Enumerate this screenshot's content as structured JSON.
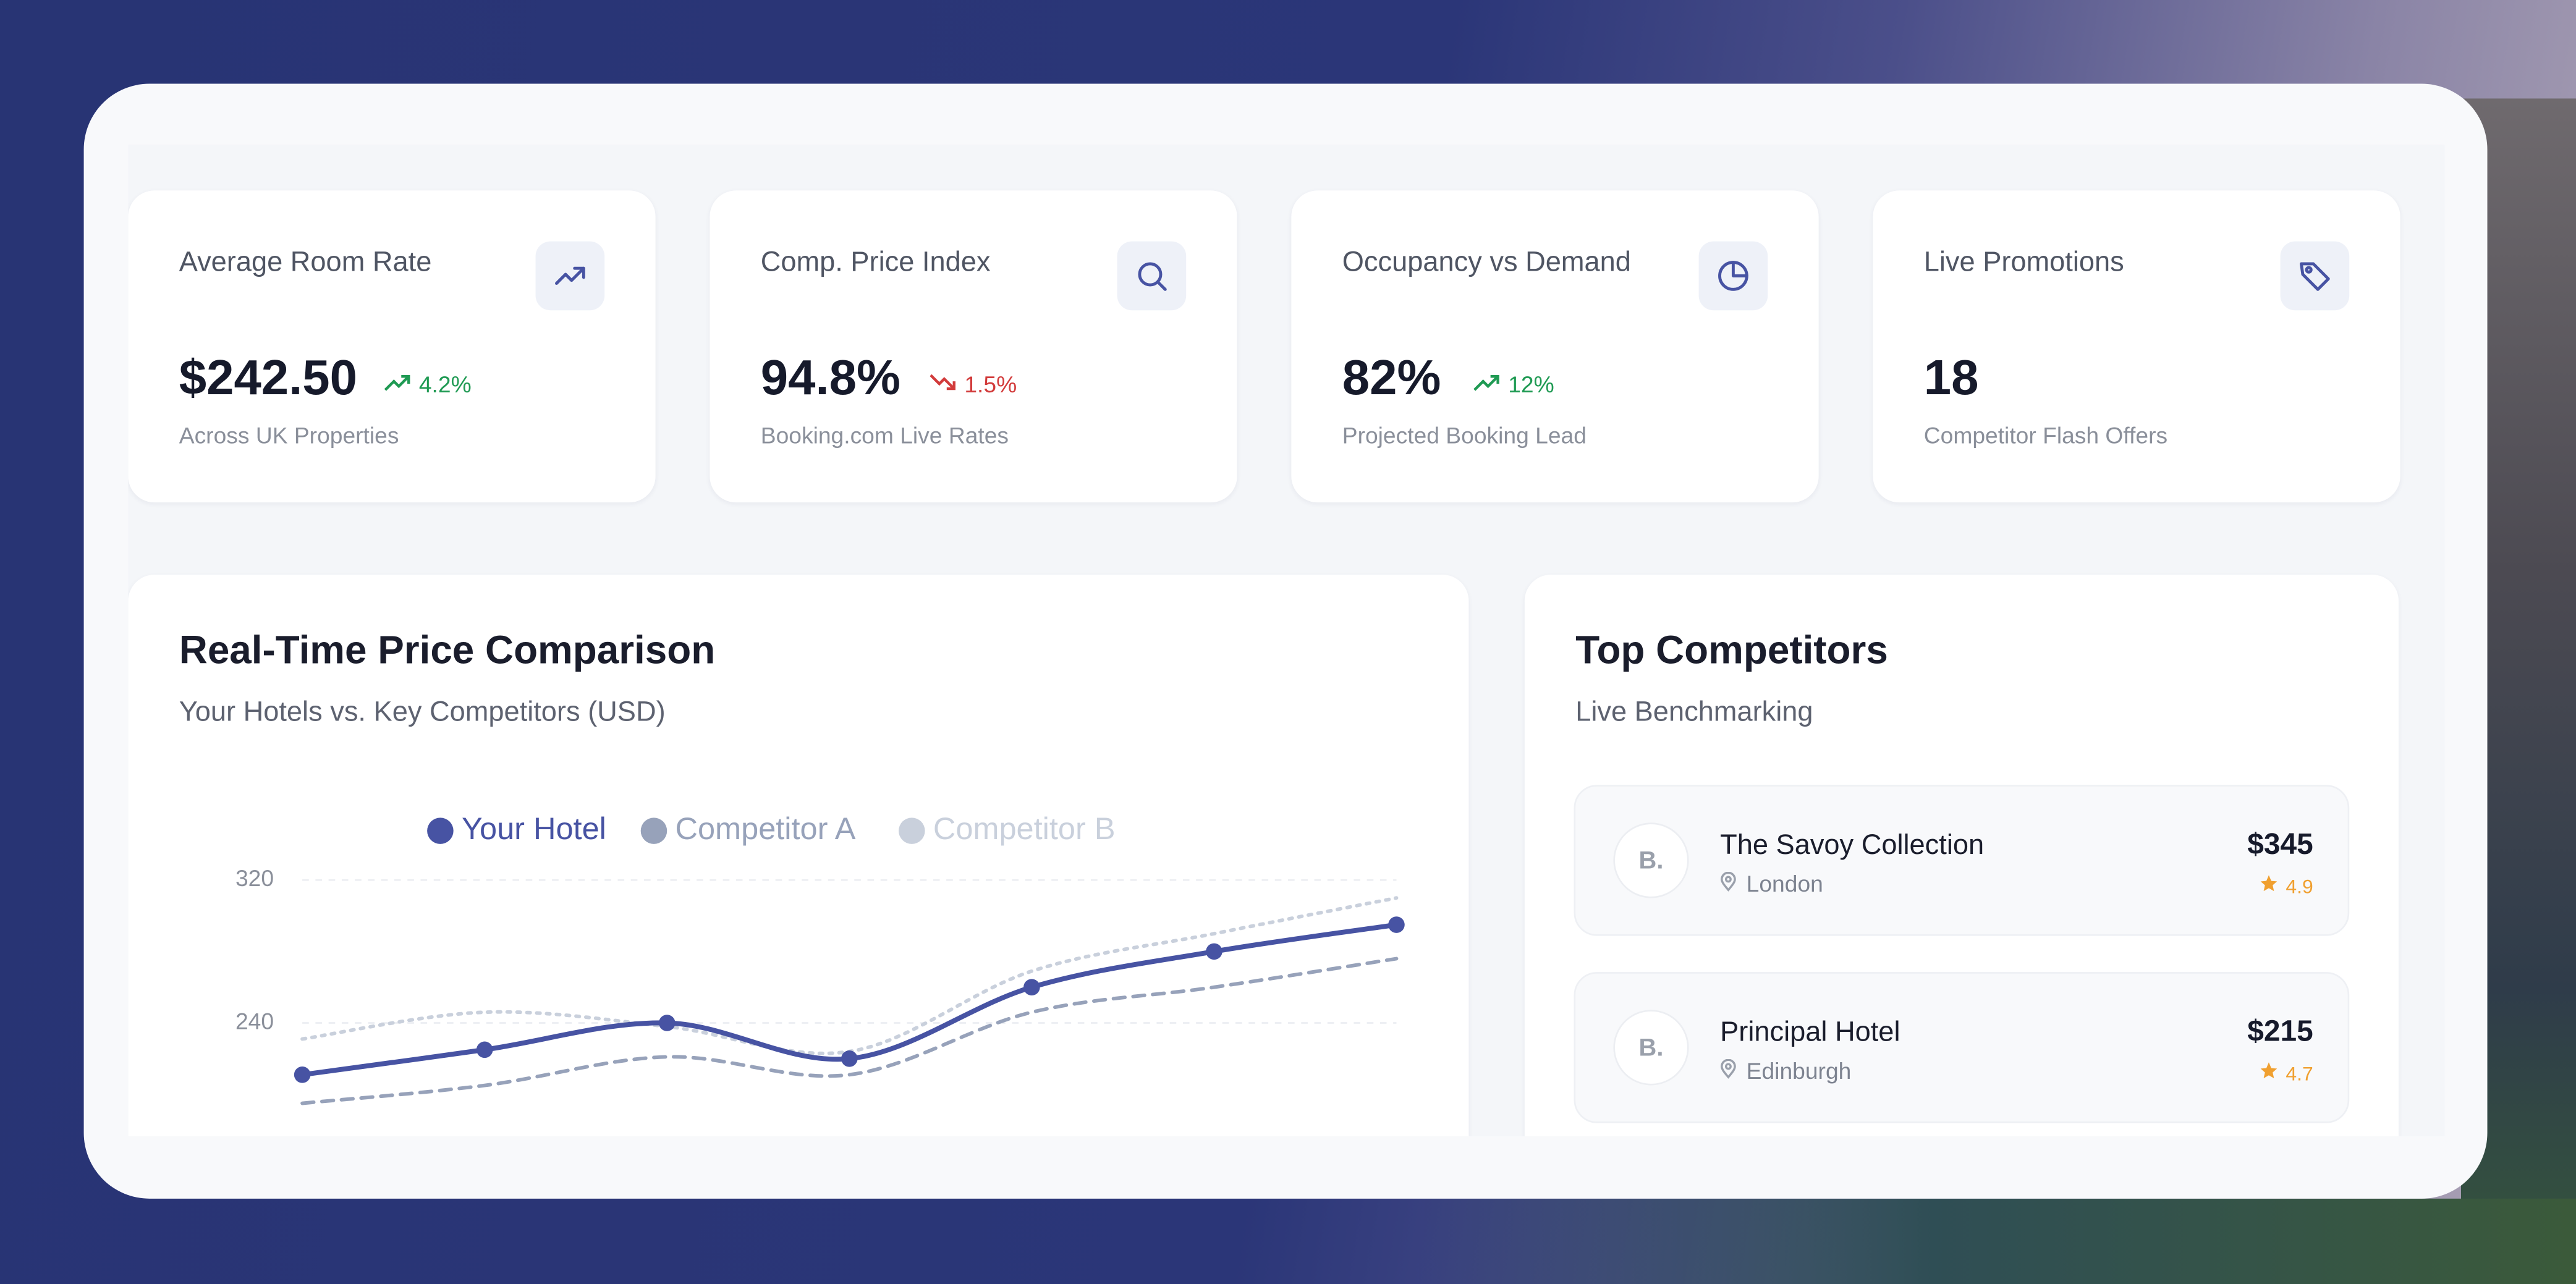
{
  "kpi_cards": [
    {
      "title": "Average Room Rate",
      "value": "$242.50",
      "change": "4.2%",
      "trend": "up",
      "subtitle": "Across UK Properties"
    },
    {
      "title": "Comp. Price Index",
      "value": "94.8%",
      "change": "1.5%",
      "trend": "down",
      "subtitle": "Booking.com Live Rates"
    },
    {
      "title": "Occupancy vs Demand",
      "value": "82%",
      "change": "12%",
      "trend": "up",
      "subtitle": "Projected Booking Lead"
    },
    {
      "title": "Live Promotions",
      "value": "18",
      "subtitle": "Competitor Flash Offers"
    }
  ],
  "price_chart": {
    "title": "Real-Time Price Comparison",
    "subtitle": "Your Hotels vs. Key Competitors (USD)",
    "chart_data": {
      "type": "line",
      "categories": [
        null,
        null,
        null,
        null,
        null,
        null,
        null
      ],
      "series": [
        {
          "name": "Your Hotel",
          "color": "#4753a3",
          "line_style": "solid",
          "markers": true,
          "values": [
            211,
            225,
            240,
            220,
            260,
            280,
            295
          ]
        },
        {
          "name": "Competitor A",
          "color": "#97a2ba",
          "line_style": "dashed",
          "markers": false,
          "values": [
            195,
            205,
            221,
            211,
            246,
            260,
            276
          ]
        },
        {
          "name": "Competitor B",
          "color": "#c9d0dc",
          "line_style": "dotted",
          "markers": false,
          "values": [
            231,
            246,
            238,
            224,
            269,
            290,
            310
          ]
        }
      ],
      "ylim": [
        160,
        320
      ],
      "yticks": [
        240,
        320
      ],
      "grid": true,
      "legend": "top"
    }
  },
  "competitors": {
    "title": "Top Competitors",
    "subtitle": "Live Benchmarking",
    "items": [
      {
        "initials": "B.",
        "name": "The Savoy Collection",
        "location": "London",
        "price": "$345",
        "rating": "4.9"
      },
      {
        "initials": "B.",
        "name": "Principal Hotel",
        "location": "Edinburgh",
        "price": "$215",
        "rating": "4.7"
      }
    ]
  }
}
